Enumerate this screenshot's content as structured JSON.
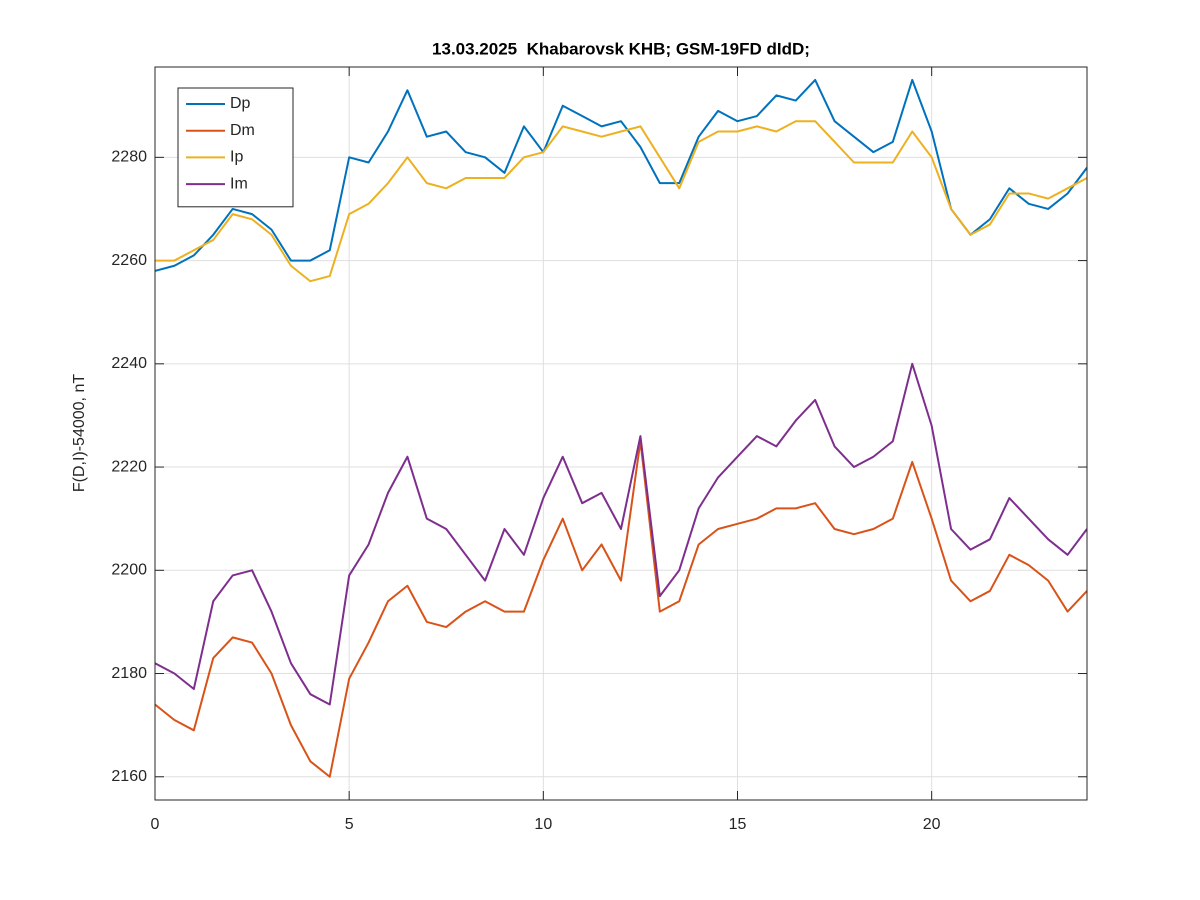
{
  "chart_data": {
    "type": "line",
    "title": "13.03.2025  Khabarovsk KHB; GSM-19FD dIdD;",
    "ylabel": "F(D,I)-54000, nT",
    "x": [
      0,
      0.5,
      1,
      1.5,
      2,
      2.5,
      3,
      3.5,
      4,
      4.5,
      5,
      5.5,
      6,
      6.5,
      7,
      7.5,
      8,
      8.5,
      9,
      9.5,
      10,
      10.5,
      11,
      11.5,
      12,
      12.5,
      13,
      13.5,
      14,
      14.5,
      15,
      15.5,
      16,
      16.5,
      17,
      17.5,
      18,
      18.5,
      19,
      19.5,
      20,
      20.5,
      21,
      21.5,
      22,
      22.5,
      23,
      23.5,
      24
    ],
    "series": [
      {
        "name": "Dp",
        "color": "#0072BD",
        "values": [
          2258,
          2259,
          2261,
          2265,
          2270,
          2269,
          2266,
          2260,
          2260,
          2262,
          2280,
          2279,
          2285,
          2293,
          2284,
          2285,
          2281,
          2280,
          2277,
          2286,
          2281,
          2290,
          2288,
          2286,
          2287,
          2282,
          2275,
          2275,
          2284,
          2289,
          2287,
          2288,
          2292,
          2291,
          2295,
          2287,
          2284,
          2281,
          2283,
          2295,
          2285,
          2270,
          2265,
          2268,
          2274,
          2271,
          2270,
          2273,
          2278
        ]
      },
      {
        "name": "Dm",
        "color": "#D95319",
        "values": [
          2174,
          2171,
          2169,
          2183,
          2187,
          2186,
          2180,
          2170,
          2163,
          2160,
          2179,
          2186,
          2194,
          2197,
          2190,
          2189,
          2192,
          2194,
          2192,
          2192,
          2202,
          2210,
          2200,
          2205,
          2198,
          2225,
          2192,
          2194,
          2205,
          2208,
          2209,
          2210,
          2212,
          2212,
          2213,
          2208,
          2207,
          2208,
          2210,
          2221,
          2210,
          2198,
          2194,
          2196,
          2203,
          2201,
          2198,
          2192,
          2196
        ]
      },
      {
        "name": "Ip",
        "color": "#EDB120",
        "values": [
          2260,
          2260,
          2262,
          2264,
          2269,
          2268,
          2265,
          2259,
          2256,
          2257,
          2269,
          2271,
          2275,
          2280,
          2275,
          2274,
          2276,
          2276,
          2276,
          2280,
          2281,
          2286,
          2285,
          2284,
          2285,
          2286,
          2280,
          2274,
          2283,
          2285,
          2285,
          2286,
          2285,
          2287,
          2287,
          2283,
          2279,
          2279,
          2279,
          2285,
          2280,
          2270,
          2265,
          2267,
          2273,
          2273,
          2272,
          2274,
          2276
        ]
      },
      {
        "name": "Im",
        "color": "#7E2F8E",
        "values": [
          2182,
          2180,
          2177,
          2194,
          2199,
          2200,
          2192,
          2182,
          2176,
          2174,
          2199,
          2205,
          2215,
          2222,
          2210,
          2208,
          2203,
          2198,
          2208,
          2203,
          2214,
          2222,
          2213,
          2215,
          2208,
          2226,
          2195,
          2200,
          2212,
          2218,
          2222,
          2226,
          2224,
          2229,
          2233,
          2224,
          2220,
          2222,
          2225,
          2240,
          2228,
          2208,
          2204,
          2206,
          2214,
          2210,
          2206,
          2203,
          2208
        ]
      }
    ],
    "xlim": [
      0,
      24
    ],
    "xticks": [
      0,
      5,
      10,
      15,
      20
    ],
    "ylim": [
      2155.5,
      2297.5
    ],
    "yticks": [
      2160,
      2180,
      2200,
      2220,
      2240,
      2260,
      2280
    ],
    "grid": true,
    "legend": "northwest"
  }
}
